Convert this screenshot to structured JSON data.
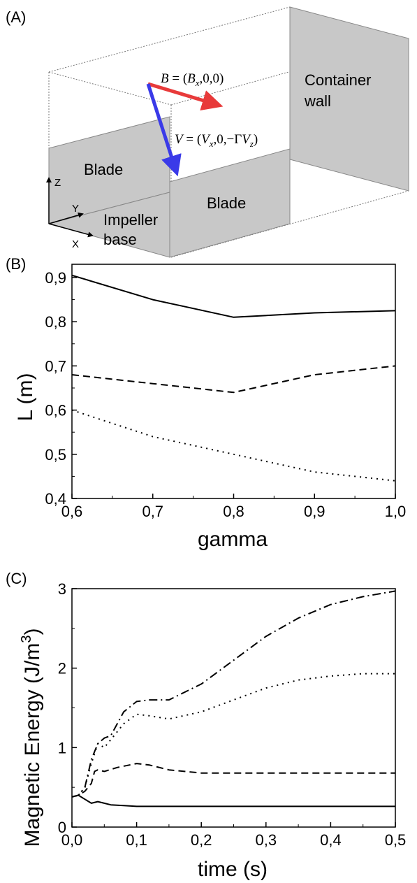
{
  "panels": {
    "a": "(A)",
    "b": "(B)",
    "c": "(C)"
  },
  "diagram": {
    "b_eq": "B = (B_x,0,0)",
    "v_eq": "V = (V_x,0,−ΓV_z)",
    "container_wall_1": "Container",
    "container_wall_2": "wall",
    "blade_left": "Blade",
    "blade_right": "Blade",
    "impeller_1": "Impeller",
    "impeller_2": "base",
    "axis_z": "Z",
    "axis_y": "Y",
    "axis_x": "X",
    "colors": {
      "b_arrow": "#e83a3a",
      "v_arrow": "#3a3ae8",
      "surface": "#c8c8c8"
    }
  },
  "chart_data": [
    {
      "type": "line",
      "xlabel": "gamma",
      "ylabel": "L (m)",
      "xlim": [
        0.6,
        1.0
      ],
      "ylim": [
        0.4,
        0.93
      ],
      "xticks": [
        "0,6",
        "0,7",
        "0,8",
        "0,9",
        "1,0"
      ],
      "yticks": [
        "0,4",
        "0,5",
        "0,6",
        "0,7",
        "0,8",
        "0,9"
      ],
      "x": [
        0.6,
        0.7,
        0.8,
        0.9,
        1.0
      ],
      "series": [
        {
          "style": "solid",
          "values": [
            0.905,
            0.85,
            0.81,
            0.82,
            0.825
          ]
        },
        {
          "style": "dashed",
          "values": [
            0.68,
            0.66,
            0.64,
            0.68,
            0.7
          ]
        },
        {
          "style": "dotted",
          "values": [
            0.6,
            0.54,
            0.5,
            0.46,
            0.44
          ]
        }
      ]
    },
    {
      "type": "line",
      "xlabel": "time (s)",
      "ylabel": "Magnetic Energy (J/m3)",
      "xlim": [
        0.0,
        0.5
      ],
      "ylim": [
        0,
        3.0
      ],
      "xticks": [
        "0,0",
        "0,1",
        "0,2",
        "0,3",
        "0,4",
        "0,5"
      ],
      "yticks": [
        "0",
        "1",
        "2",
        "3"
      ],
      "series": [
        {
          "style": "solid",
          "x": [
            0.0,
            0.01,
            0.02,
            0.03,
            0.04,
            0.05,
            0.06,
            0.08,
            0.1,
            0.15,
            0.2,
            0.3,
            0.4,
            0.5
          ],
          "values": [
            0.38,
            0.4,
            0.35,
            0.3,
            0.32,
            0.3,
            0.28,
            0.27,
            0.26,
            0.26,
            0.26,
            0.26,
            0.26,
            0.26
          ]
        },
        {
          "style": "dashed",
          "x": [
            0.0,
            0.01,
            0.02,
            0.03,
            0.035,
            0.04,
            0.05,
            0.07,
            0.1,
            0.12,
            0.15,
            0.2,
            0.3,
            0.4,
            0.5
          ],
          "values": [
            0.38,
            0.4,
            0.45,
            0.55,
            0.7,
            0.72,
            0.7,
            0.75,
            0.8,
            0.78,
            0.72,
            0.68,
            0.68,
            0.68,
            0.68
          ]
        },
        {
          "style": "dotted",
          "x": [
            0.0,
            0.01,
            0.02,
            0.03,
            0.04,
            0.05,
            0.06,
            0.08,
            0.1,
            0.12,
            0.15,
            0.2,
            0.25,
            0.3,
            0.35,
            0.4,
            0.45,
            0.5
          ],
          "values": [
            0.38,
            0.4,
            0.5,
            0.8,
            1.05,
            1.0,
            1.1,
            1.3,
            1.42,
            1.4,
            1.36,
            1.45,
            1.6,
            1.75,
            1.85,
            1.9,
            1.93,
            1.93
          ]
        },
        {
          "style": "dashdot",
          "x": [
            0.0,
            0.01,
            0.02,
            0.03,
            0.04,
            0.05,
            0.06,
            0.08,
            0.1,
            0.12,
            0.15,
            0.2,
            0.25,
            0.3,
            0.35,
            0.4,
            0.45,
            0.5
          ],
          "values": [
            0.38,
            0.4,
            0.5,
            0.85,
            1.05,
            1.12,
            1.15,
            1.45,
            1.58,
            1.6,
            1.6,
            1.8,
            2.1,
            2.4,
            2.63,
            2.8,
            2.9,
            2.97
          ]
        }
      ]
    }
  ]
}
